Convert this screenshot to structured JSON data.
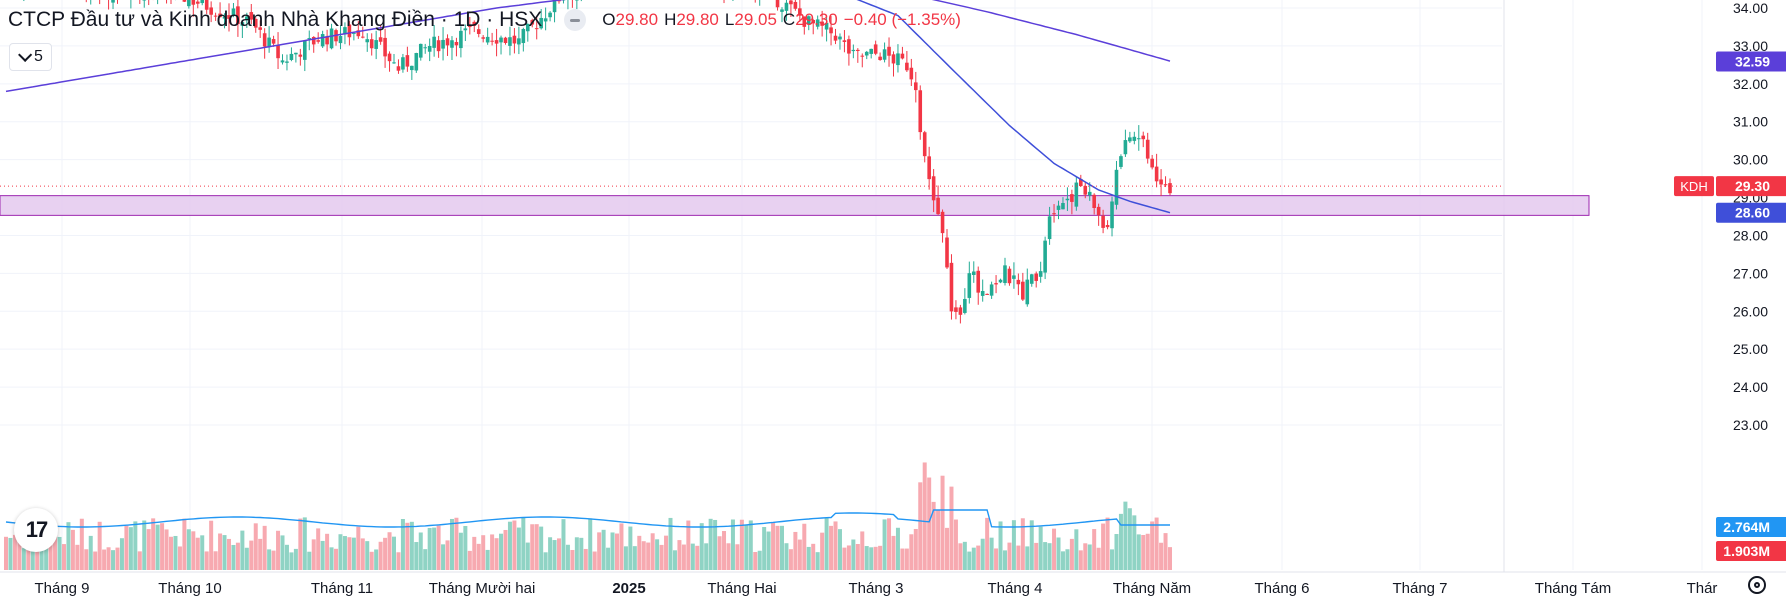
{
  "header": {
    "symbol_title": "CTCP Đầu tư và Kinh doanh Nhà Khang Điền · 1D · HSX",
    "ohlc": [
      {
        "key": "O",
        "value": "29.80"
      },
      {
        "key": "H",
        "value": "29.80"
      },
      {
        "key": "L",
        "value": "29.05"
      },
      {
        "key": "C",
        "value": "29.30"
      },
      {
        "key": "",
        "value": "−0.40 (−1.35%)"
      }
    ]
  },
  "indicator_button": {
    "label": "5"
  },
  "logo_text": "17",
  "colors": {
    "up": "#22ab94",
    "down": "#f23645",
    "vol_up": "#8fd3c4",
    "vol_down": "#f7a9b0",
    "ma_long": "#5b3fd9",
    "ma_short": "#3f4fd9",
    "vol_ma": "#2196f3",
    "zone_fill": "#e4c9ef",
    "zone_stroke": "#9c27b0",
    "grid": "#f0f3fa",
    "axis_text": "#131722"
  },
  "chart_data": {
    "type": "candlestick",
    "price_axis": {
      "min": 22.5,
      "max": 34.2,
      "ticks": [
        "34.00",
        "33.00",
        "32.00",
        "31.00",
        "30.00",
        "29.00",
        "28.00",
        "27.00",
        "26.00",
        "25.00",
        "24.00",
        "23.00"
      ]
    },
    "time_axis": {
      "labels": [
        "Tháng 9",
        "Tháng 10",
        "Tháng 11",
        "Tháng Mười hai",
        "2025",
        "Tháng Hai",
        "Tháng 3",
        "Tháng 4",
        "Tháng Năm",
        "Tháng 6",
        "Tháng 7",
        "Tháng Tám",
        "Thár"
      ]
    },
    "last_price": {
      "ticker": "KDH",
      "value": "29.30"
    },
    "ma_long_label": "32.59",
    "ma_short_label": "28.60",
    "volume_labels": {
      "ma": "2.764M",
      "last": "1.903M"
    },
    "zone": {
      "top": 29.05,
      "bottom": 28.53
    },
    "candles_visible_segments": [
      {
        "segment": "Sep–Dec 2024",
        "range": [
          31.5,
          34.2
        ]
      },
      {
        "segment": "Mar 2025",
        "range": [
          31.9,
          34.0
        ]
      },
      {
        "segment": "Apr–Jun 2025",
        "range": [
          24.3,
          31.5
        ]
      }
    ]
  }
}
